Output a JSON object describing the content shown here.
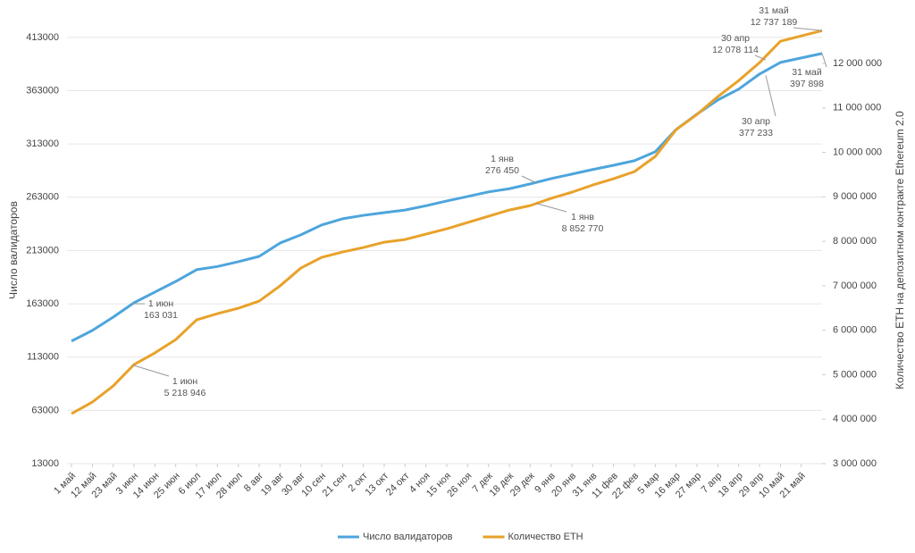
{
  "chart_data": {
    "type": "line",
    "y_label": "Число валидаторов",
    "y2_label": "Количество ETH на депозитном контракте Ethereum 2.0",
    "categories": [
      "1 май",
      "12 май",
      "23 май",
      "3 июн",
      "14 июн",
      "25 июн",
      "6 июл",
      "17 июл",
      "28 июл",
      "8 авг",
      "19 авг",
      "30 авг",
      "10 сен",
      "21 сен",
      "2 окт",
      "13 окт",
      "24 окт",
      "4 ноя",
      "15 ноя",
      "26 ноя",
      "7 дек",
      "18 дек",
      "29 дек",
      "9 янв",
      "20 янв",
      "31 янв",
      "11 фев",
      "22 фев",
      "5 мар",
      "16 мар",
      "27 мар",
      "7 апр",
      "18 апр",
      "29 апр",
      "10 май",
      "21 май",
      null
    ],
    "series": [
      {
        "name": "Число валидаторов",
        "color": "#4ea5dc",
        "axis": "y",
        "values": [
          128000,
          138000,
          150500,
          164000,
          174000,
          184000,
          195000,
          198000,
          202500,
          207500,
          220000,
          227700,
          237000,
          242800,
          246000,
          248600,
          251000,
          255000,
          259500,
          263700,
          268000,
          271000,
          275500,
          280500,
          284700,
          289000,
          293000,
          297300,
          305700,
          326600,
          341000,
          354300,
          364400,
          378600,
          389500,
          393700,
          397898
        ]
      },
      {
        "name": "Количество ETH",
        "color": "#e8a22a",
        "axis": "y2",
        "values": [
          4124000,
          4385000,
          4747000,
          5229000,
          5490000,
          5790000,
          6233000,
          6373000,
          6494000,
          6655000,
          6996000,
          7398000,
          7639000,
          7759000,
          7860000,
          7980000,
          8040000,
          8161000,
          8281000,
          8422000,
          8562000,
          8703000,
          8803000,
          8964000,
          9104000,
          9265000,
          9406000,
          9566000,
          9908000,
          10510000,
          10851000,
          11253000,
          11614000,
          12016000,
          12498000,
          12618000,
          12737189
        ]
      }
    ],
    "ylim": [
      13000,
      433000
    ],
    "yticks": [
      13000,
      63000,
      113000,
      163000,
      213000,
      263000,
      313000,
      363000,
      413000
    ],
    "y2lim": [
      3000000,
      13064000
    ],
    "y2ticks": [
      {
        "value": 3000000,
        "label": "3 000 000"
      },
      {
        "value": 4000000,
        "label": "4 000 000"
      },
      {
        "value": 5000000,
        "label": "5 000 000"
      },
      {
        "value": 6000000,
        "label": "6 000 000"
      },
      {
        "value": 7000000,
        "label": "7 000 000"
      },
      {
        "value": 8000000,
        "label": "8 000 000"
      },
      {
        "value": 9000000,
        "label": "9 000 000"
      },
      {
        "value": 10000000,
        "label": "10 000 000"
      },
      {
        "value": 11000000,
        "label": "11 000 000"
      },
      {
        "value": 12000000,
        "label": "12 000 000"
      }
    ],
    "grid": true,
    "legend": "bottom",
    "annotations": [
      {
        "text": "1 июн",
        "value": 163031,
        "label": "163 031",
        "axis": "y"
      },
      {
        "text": "1 июн",
        "value": 5218946,
        "label": "5 218 946",
        "axis": "y2"
      },
      {
        "text": "1 янв",
        "value": 276450,
        "label": "276 450",
        "axis": "y"
      },
      {
        "text": "1 янв",
        "value": 8852770,
        "label": "8 852 770",
        "axis": "y2"
      },
      {
        "text": "30 апр",
        "value": 12078114,
        "label": "12 078 114",
        "axis": "y2"
      },
      {
        "text": "30 апр",
        "value": 377233,
        "label": "377 233",
        "axis": "y"
      },
      {
        "text": "31 май",
        "value": 12737189,
        "label": "12 737 189",
        "axis": "y2"
      },
      {
        "text": "31 май",
        "value": 397898,
        "label": "397 898",
        "axis": "y"
      }
    ]
  }
}
